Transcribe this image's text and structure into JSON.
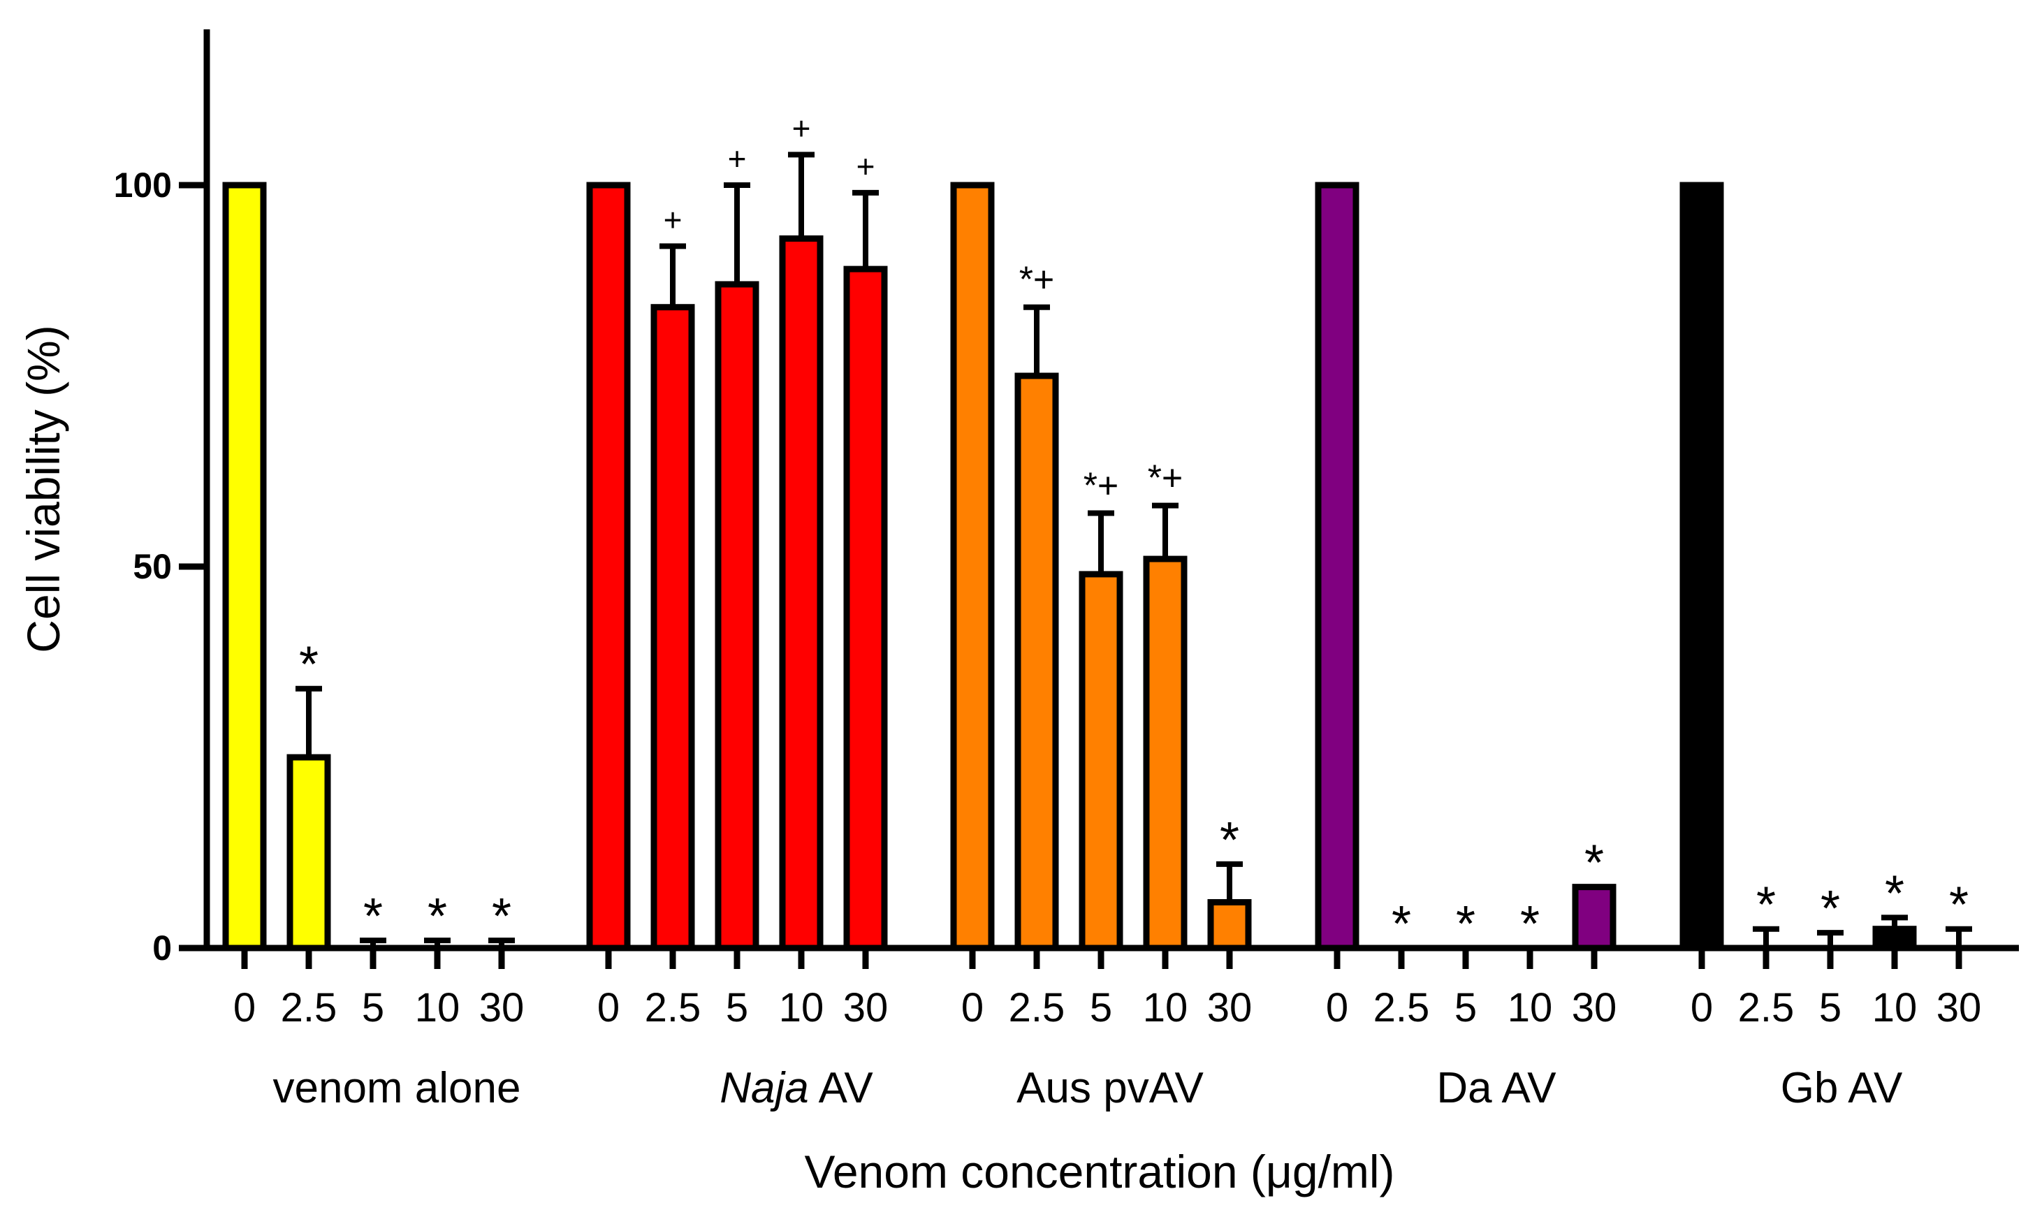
{
  "chart_data": {
    "type": "bar",
    "title": "",
    "xlabel": "Venom concentration (μg/ml)",
    "ylabel": "Cell viability (%)",
    "ylim": [
      0,
      120
    ],
    "yticks": [
      0,
      50,
      100
    ],
    "grid": false,
    "legend": "none",
    "concentrations": [
      "0",
      "2.5",
      "5",
      "10",
      "30"
    ],
    "groups": [
      {
        "name": "venom alone",
        "name_parts": [
          {
            "text": "venom alone",
            "italic": false
          }
        ],
        "color": "#FFFF00",
        "values": [
          100,
          25,
          0,
          0,
          0
        ],
        "errors": [
          0,
          9,
          1,
          1,
          1
        ],
        "annotations": [
          "",
          "*",
          "*",
          "*",
          "*"
        ]
      },
      {
        "name": "Naja AV",
        "name_parts": [
          {
            "text": "Naja",
            "italic": true
          },
          {
            "text": " AV",
            "italic": false
          }
        ],
        "color": "#FF0000",
        "values": [
          100,
          84,
          87,
          93,
          89
        ],
        "errors": [
          0,
          8,
          13,
          11,
          10
        ],
        "annotations": [
          "",
          "+",
          "+",
          "+",
          "+"
        ]
      },
      {
        "name": "Aus pvAV",
        "name_parts": [
          {
            "text": "Aus pvAV",
            "italic": false
          }
        ],
        "color": "#FF8000",
        "values": [
          100,
          75,
          49,
          51,
          6
        ],
        "errors": [
          0,
          9,
          8,
          7,
          5
        ],
        "annotations": [
          "",
          "*+",
          "*+",
          "*+",
          "*"
        ]
      },
      {
        "name": "Da AV",
        "name_parts": [
          {
            "text": "Da AV",
            "italic": false
          }
        ],
        "color": "#800080",
        "values": [
          100,
          0,
          0,
          0,
          8
        ],
        "errors": [
          0,
          0,
          0,
          0,
          0
        ],
        "annotations": [
          "",
          "*",
          "*",
          "*",
          "*"
        ]
      },
      {
        "name": "Gb AV",
        "name_parts": [
          {
            "text": "Gb AV",
            "italic": false
          }
        ],
        "color": "#000000",
        "values": [
          100,
          0,
          0,
          2.5,
          0
        ],
        "errors": [
          0,
          2.5,
          2,
          1.5,
          2.5
        ],
        "annotations": [
          "",
          "*",
          "*",
          "*",
          "*"
        ]
      }
    ]
  }
}
